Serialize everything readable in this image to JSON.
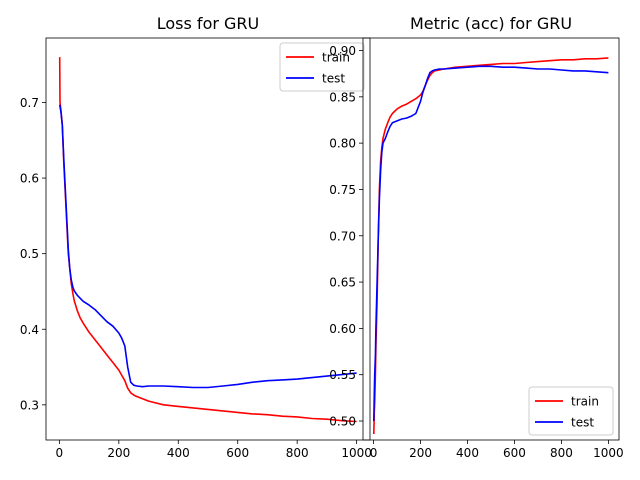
{
  "chart_data": [
    {
      "type": "line",
      "title": "Loss for GRU",
      "xlabel": "",
      "ylabel": "",
      "xlim": [
        -45,
        1045
      ],
      "ylim": [
        0.2535,
        0.7853
      ],
      "xticks": [
        0,
        200,
        400,
        600,
        800,
        1000
      ],
      "yticks": [
        0.3,
        0.4,
        0.5,
        0.6,
        0.7
      ],
      "grid": false,
      "legend": "upper-right",
      "series": [
        {
          "name": "train",
          "color": "#ff0000",
          "x": [
            1,
            2,
            5,
            10,
            15,
            20,
            25,
            30,
            35,
            40,
            45,
            50,
            60,
            70,
            80,
            100,
            120,
            140,
            160,
            180,
            200,
            210,
            220,
            230,
            240,
            250,
            260,
            280,
            300,
            350,
            400,
            450,
            500,
            550,
            600,
            650,
            700,
            750,
            800,
            850,
            900,
            950,
            1000
          ],
          "y": [
            0.76,
            0.7,
            0.69,
            0.67,
            0.62,
            0.58,
            0.54,
            0.5,
            0.48,
            0.46,
            0.448,
            0.438,
            0.425,
            0.415,
            0.408,
            0.396,
            0.386,
            0.376,
            0.366,
            0.356,
            0.346,
            0.339,
            0.332,
            0.322,
            0.316,
            0.313,
            0.311,
            0.308,
            0.305,
            0.3,
            0.298,
            0.296,
            0.294,
            0.292,
            0.29,
            0.288,
            0.287,
            0.285,
            0.284,
            0.282,
            0.281,
            0.279,
            0.278
          ]
        },
        {
          "name": "test",
          "color": "#0000ff",
          "x": [
            1,
            5,
            10,
            15,
            20,
            25,
            30,
            35,
            40,
            45,
            50,
            60,
            70,
            80,
            100,
            120,
            140,
            160,
            180,
            200,
            210,
            220,
            230,
            240,
            250,
            260,
            280,
            300,
            350,
            400,
            450,
            500,
            550,
            600,
            650,
            700,
            750,
            800,
            850,
            900,
            950,
            1000
          ],
          "y": [
            0.697,
            0.688,
            0.67,
            0.625,
            0.585,
            0.545,
            0.505,
            0.48,
            0.465,
            0.456,
            0.451,
            0.445,
            0.441,
            0.437,
            0.432,
            0.426,
            0.418,
            0.41,
            0.404,
            0.395,
            0.388,
            0.378,
            0.35,
            0.33,
            0.326,
            0.325,
            0.324,
            0.325,
            0.325,
            0.324,
            0.323,
            0.323,
            0.325,
            0.327,
            0.33,
            0.332,
            0.333,
            0.334,
            0.336,
            0.338,
            0.34,
            0.342
          ]
        }
      ]
    },
    {
      "type": "line",
      "title": "Metric (acc) for GRU",
      "xlabel": "",
      "ylabel": "",
      "xlim": [
        -45,
        1045
      ],
      "ylim": [
        0.4795,
        0.9135
      ],
      "xticks": [
        0,
        200,
        400,
        600,
        800,
        1000
      ],
      "yticks": [
        0.5,
        0.55,
        0.6,
        0.65,
        0.7,
        0.75,
        0.8,
        0.85,
        0.9
      ],
      "grid": false,
      "legend": "lower-right",
      "series": [
        {
          "name": "train",
          "color": "#ff0000",
          "x": [
            1,
            3,
            5,
            8,
            10,
            15,
            20,
            25,
            30,
            35,
            40,
            50,
            60,
            70,
            80,
            100,
            120,
            140,
            160,
            180,
            200,
            210,
            220,
            230,
            240,
            250,
            260,
            280,
            300,
            350,
            400,
            450,
            500,
            550,
            600,
            650,
            700,
            750,
            800,
            850,
            900,
            950,
            1000
          ],
          "y": [
            0.486,
            0.51,
            0.52,
            0.55,
            0.58,
            0.63,
            0.7,
            0.75,
            0.78,
            0.795,
            0.805,
            0.815,
            0.822,
            0.828,
            0.832,
            0.837,
            0.84,
            0.842,
            0.845,
            0.848,
            0.852,
            0.856,
            0.862,
            0.868,
            0.873,
            0.876,
            0.878,
            0.879,
            0.88,
            0.882,
            0.883,
            0.884,
            0.885,
            0.886,
            0.886,
            0.887,
            0.888,
            0.889,
            0.89,
            0.89,
            0.891,
            0.891,
            0.892
          ]
        },
        {
          "name": "test",
          "color": "#0000ff",
          "x": [
            1,
            3,
            5,
            8,
            10,
            15,
            20,
            25,
            30,
            35,
            40,
            50,
            60,
            70,
            80,
            100,
            120,
            140,
            160,
            180,
            200,
            210,
            220,
            230,
            240,
            250,
            260,
            280,
            300,
            350,
            400,
            450,
            500,
            550,
            600,
            650,
            700,
            750,
            800,
            850,
            900,
            950,
            1000
          ],
          "y": [
            0.5,
            0.53,
            0.55,
            0.57,
            0.6,
            0.65,
            0.7,
            0.74,
            0.77,
            0.79,
            0.8,
            0.805,
            0.812,
            0.818,
            0.822,
            0.824,
            0.826,
            0.827,
            0.829,
            0.832,
            0.845,
            0.855,
            0.862,
            0.87,
            0.876,
            0.878,
            0.879,
            0.88,
            0.88,
            0.881,
            0.882,
            0.883,
            0.883,
            0.882,
            0.882,
            0.881,
            0.88,
            0.88,
            0.879,
            0.878,
            0.878,
            0.877,
            0.876
          ]
        }
      ]
    }
  ]
}
